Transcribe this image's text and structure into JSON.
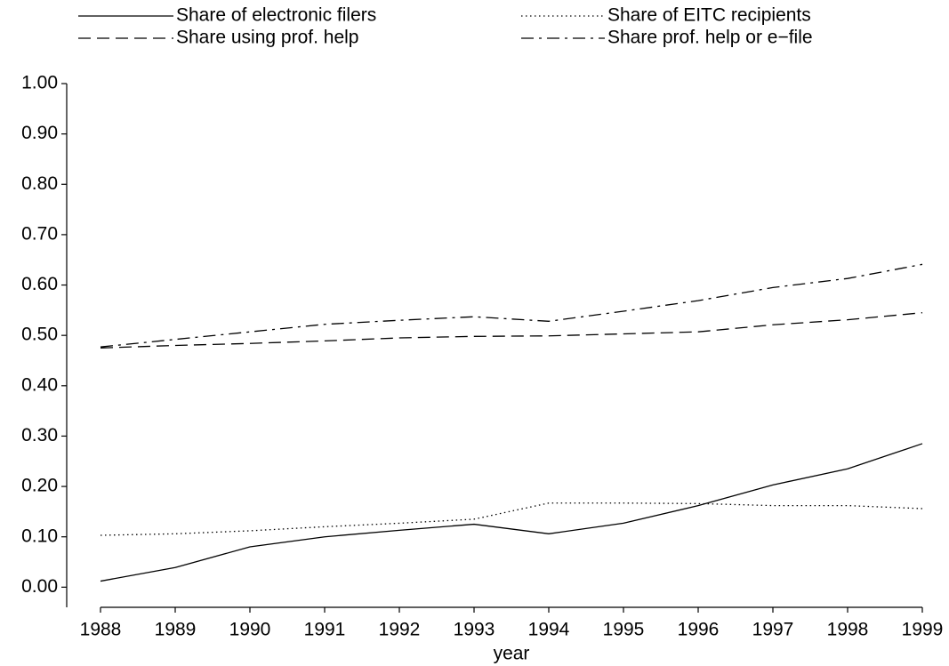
{
  "chart_data": {
    "type": "line",
    "x_label": "year",
    "x": [
      1988,
      1989,
      1990,
      1991,
      1992,
      1993,
      1994,
      1995,
      1996,
      1997,
      1998,
      1999
    ],
    "series": [
      {
        "name": "Share of electronic filers",
        "color": "#000000",
        "dash": "solid",
        "values": [
          0.012,
          0.039,
          0.08,
          0.1,
          0.113,
          0.125,
          0.106,
          0.127,
          0.162,
          0.203,
          0.235,
          0.285
        ]
      },
      {
        "name": "Share of EITC recipients",
        "color": "#000000",
        "dash": "dotted",
        "values": [
          0.103,
          0.106,
          0.112,
          0.12,
          0.127,
          0.135,
          0.167,
          0.167,
          0.166,
          0.162,
          0.162,
          0.156
        ]
      },
      {
        "name": "Share using prof. help",
        "color": "#000000",
        "dash": "dashed",
        "values": [
          0.475,
          0.48,
          0.484,
          0.489,
          0.495,
          0.498,
          0.499,
          0.503,
          0.507,
          0.521,
          0.531,
          0.545
        ]
      },
      {
        "name": "Share prof. help or e−file",
        "color": "#000000",
        "dash": "dashdot",
        "values": [
          0.477,
          0.492,
          0.507,
          0.522,
          0.53,
          0.537,
          0.528,
          0.548,
          0.569,
          0.595,
          0.613,
          0.641
        ]
      }
    ],
    "xlim": [
      1988,
      1999
    ],
    "xticks": [
      1988,
      1989,
      1990,
      1991,
      1992,
      1993,
      1994,
      1995,
      1996,
      1997,
      1998,
      1999
    ],
    "ylim": [
      -0.04,
      1.0
    ],
    "yticks": [
      {
        "value": 0,
        "label": "0.00"
      },
      {
        "value": 0.1,
        "label": "0.10"
      },
      {
        "value": 0.2,
        "label": "0.20"
      },
      {
        "value": 0.3,
        "label": "0.30"
      },
      {
        "value": 0.4,
        "label": "0.40"
      },
      {
        "value": 0.5,
        "label": "0.50"
      },
      {
        "value": 0.6,
        "label": "0.60"
      },
      {
        "value": 0.7,
        "label": "0.70"
      },
      {
        "value": 0.8,
        "label": "0.80"
      },
      {
        "value": 0.9,
        "label": "0.90"
      },
      {
        "value": 1.0,
        "label": "1.00"
      }
    ],
    "legend": "top",
    "grid": false
  }
}
